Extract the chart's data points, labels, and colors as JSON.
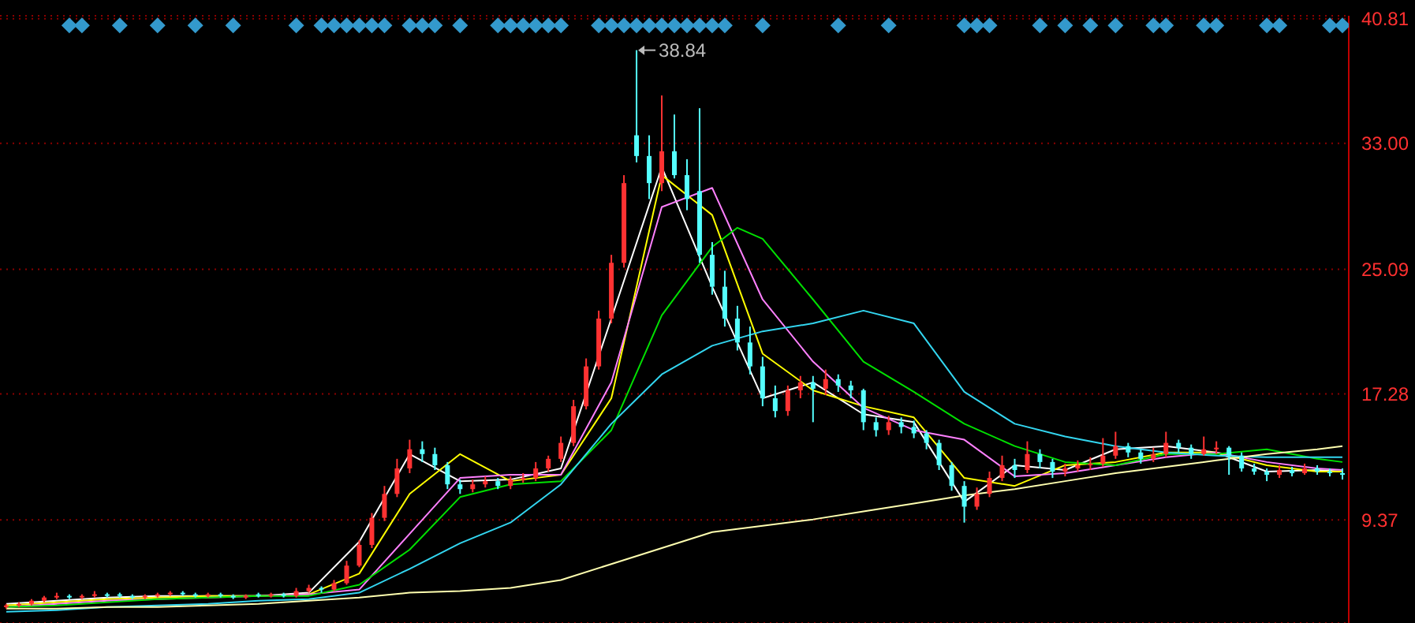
{
  "chart_data": {
    "type": "candlestick",
    "categories": [
      null,
      null,
      null,
      null,
      null,
      null,
      null,
      null,
      null,
      null,
      null,
      null,
      null,
      null,
      null,
      null,
      null,
      null,
      null,
      null,
      null,
      null,
      null,
      null,
      null,
      null,
      null,
      null,
      null,
      null,
      null,
      null,
      null,
      null,
      null,
      null,
      null,
      null,
      null,
      null,
      null,
      null,
      null,
      null,
      null,
      null,
      null,
      null,
      null,
      null,
      null,
      null,
      null,
      null,
      null,
      null,
      null,
      null,
      null,
      null,
      null,
      null,
      null,
      null,
      null,
      null,
      null,
      null,
      null,
      null,
      null,
      null,
      null,
      null,
      null,
      null,
      null,
      null,
      null,
      null,
      null,
      null,
      null,
      null,
      null,
      null,
      null,
      null,
      null,
      null,
      null,
      null,
      null,
      null,
      null,
      null,
      null,
      null,
      null,
      null,
      null,
      null,
      null,
      null,
      null,
      null,
      null
    ],
    "ohlc": [
      [
        3.9,
        4.1,
        3.8,
        4.0
      ],
      [
        4.0,
        4.2,
        3.9,
        4.1
      ],
      [
        4.1,
        4.4,
        4.0,
        4.3
      ],
      [
        4.3,
        4.6,
        4.2,
        4.5
      ],
      [
        4.5,
        4.8,
        4.4,
        4.6
      ],
      [
        4.6,
        4.7,
        4.4,
        4.5
      ],
      [
        4.5,
        4.7,
        4.4,
        4.6
      ],
      [
        4.6,
        4.9,
        4.5,
        4.7
      ],
      [
        4.7,
        4.8,
        4.5,
        4.6
      ],
      [
        4.7,
        4.8,
        4.5,
        4.6
      ],
      [
        4.6,
        4.7,
        4.4,
        4.5
      ],
      [
        4.5,
        4.7,
        4.4,
        4.6
      ],
      [
        4.6,
        4.8,
        4.5,
        4.7
      ],
      [
        4.7,
        4.9,
        4.6,
        4.8
      ],
      [
        4.8,
        4.9,
        4.6,
        4.7
      ],
      [
        4.7,
        4.8,
        4.5,
        4.6
      ],
      [
        4.6,
        4.8,
        4.5,
        4.7
      ],
      [
        4.7,
        4.8,
        4.5,
        4.6
      ],
      [
        4.6,
        4.7,
        4.4,
        4.5
      ],
      [
        4.5,
        4.7,
        4.4,
        4.6
      ],
      [
        4.7,
        4.8,
        4.5,
        4.6
      ],
      [
        4.6,
        4.8,
        4.5,
        4.7
      ],
      [
        4.7,
        4.8,
        4.5,
        4.6
      ],
      [
        4.6,
        5.1,
        4.5,
        4.9
      ],
      [
        4.9,
        5.3,
        4.8,
        5.1
      ],
      [
        5.1,
        5.2,
        4.8,
        5.0
      ],
      [
        5.0,
        5.6,
        4.9,
        5.4
      ],
      [
        5.4,
        6.8,
        5.3,
        6.5
      ],
      [
        6.5,
        8.1,
        6.4,
        7.8
      ],
      [
        7.8,
        9.8,
        7.6,
        9.5
      ],
      [
        9.5,
        11.5,
        9.3,
        11.0
      ],
      [
        11.0,
        13.2,
        10.8,
        12.6
      ],
      [
        12.6,
        14.4,
        12.3,
        13.8
      ],
      [
        13.8,
        14.3,
        13.0,
        13.5
      ],
      [
        13.5,
        13.9,
        12.5,
        12.8
      ],
      [
        12.8,
        13.0,
        11.3,
        11.6
      ],
      [
        11.6,
        11.9,
        11.0,
        11.3
      ],
      [
        11.3,
        11.9,
        11.1,
        11.6
      ],
      [
        11.6,
        12.1,
        11.4,
        11.8
      ],
      [
        11.8,
        12.0,
        11.3,
        11.5
      ],
      [
        11.5,
        12.1,
        11.3,
        11.9
      ],
      [
        11.9,
        12.3,
        11.7,
        12.0
      ],
      [
        12.0,
        13.0,
        11.8,
        12.6
      ],
      [
        12.6,
        13.4,
        12.4,
        13.2
      ],
      [
        13.2,
        14.6,
        13.0,
        14.2
      ],
      [
        14.2,
        16.9,
        14.0,
        16.5
      ],
      [
        16.5,
        19.5,
        16.3,
        19.0
      ],
      [
        19.0,
        22.5,
        18.8,
        22.0
      ],
      [
        22.0,
        26.0,
        21.7,
        25.5
      ],
      [
        25.5,
        31.0,
        25.2,
        30.5
      ],
      [
        33.5,
        38.84,
        31.8,
        32.2
      ],
      [
        32.2,
        33.5,
        29.5,
        30.5
      ],
      [
        30.5,
        36.0,
        30.0,
        32.5
      ],
      [
        32.5,
        34.8,
        30.8,
        31.0
      ],
      [
        31.0,
        32.0,
        28.8,
        29.5
      ],
      [
        30.0,
        35.2,
        25.5,
        26.0
      ],
      [
        26.0,
        26.8,
        23.5,
        24.0
      ],
      [
        24.0,
        25.0,
        21.5,
        22.0
      ],
      [
        22.0,
        22.8,
        20.0,
        20.5
      ],
      [
        20.5,
        21.5,
        18.5,
        19.0
      ],
      [
        19.0,
        19.6,
        16.5,
        17.0
      ],
      [
        17.0,
        17.8,
        15.8,
        16.2
      ],
      [
        16.2,
        17.8,
        15.9,
        17.5
      ],
      [
        17.5,
        18.4,
        17.0,
        18.0
      ],
      [
        18.0,
        18.4,
        15.5,
        17.6
      ],
      [
        17.6,
        18.8,
        17.2,
        18.2
      ],
      [
        18.2,
        18.5,
        17.4,
        17.8
      ],
      [
        17.8,
        18.1,
        17.0,
        17.5
      ],
      [
        17.5,
        17.6,
        15.0,
        15.5
      ],
      [
        15.5,
        15.8,
        14.6,
        15.0
      ],
      [
        15.0,
        15.9,
        14.7,
        15.5
      ],
      [
        15.5,
        15.8,
        14.8,
        15.2
      ],
      [
        15.2,
        15.6,
        14.5,
        14.8
      ],
      [
        14.8,
        15.0,
        13.8,
        14.2
      ],
      [
        14.2,
        14.4,
        12.5,
        12.8
      ],
      [
        12.8,
        13.0,
        11.2,
        11.5
      ],
      [
        11.5,
        11.8,
        9.2,
        10.2
      ],
      [
        10.2,
        11.4,
        10.0,
        11.0
      ],
      [
        11.0,
        12.4,
        10.8,
        12.0
      ],
      [
        12.0,
        13.4,
        11.8,
        12.8
      ],
      [
        12.8,
        13.2,
        12.0,
        12.5
      ],
      [
        12.5,
        14.3,
        12.3,
        13.5
      ],
      [
        13.5,
        13.8,
        12.6,
        13.0
      ],
      [
        13.0,
        13.2,
        12.0,
        12.4
      ],
      [
        12.4,
        12.9,
        12.1,
        12.6
      ],
      [
        12.6,
        13.1,
        12.4,
        12.8
      ],
      [
        12.8,
        13.3,
        12.5,
        12.9
      ],
      [
        12.9,
        14.5,
        12.7,
        13.4
      ],
      [
        13.4,
        14.9,
        13.2,
        14.0
      ],
      [
        14.0,
        14.2,
        13.3,
        13.6
      ],
      [
        13.6,
        13.8,
        12.9,
        13.2
      ],
      [
        13.2,
        13.9,
        13.0,
        13.5
      ],
      [
        13.5,
        14.9,
        13.3,
        14.2
      ],
      [
        14.2,
        14.4,
        13.6,
        13.9
      ],
      [
        13.9,
        14.1,
        13.2,
        13.5
      ],
      [
        13.5,
        14.6,
        13.4,
        13.8
      ],
      [
        13.8,
        14.3,
        13.5,
        13.9
      ],
      [
        13.9,
        14.0,
        12.2,
        13.4
      ],
      [
        13.4,
        13.6,
        12.4,
        12.6
      ],
      [
        12.6,
        12.9,
        12.2,
        12.4
      ],
      [
        12.4,
        12.6,
        11.8,
        12.2
      ],
      [
        12.2,
        12.8,
        12.0,
        12.5
      ],
      [
        12.5,
        12.7,
        12.1,
        12.3
      ],
      [
        12.3,
        12.9,
        12.2,
        12.6
      ],
      [
        12.6,
        12.8,
        12.2,
        12.4
      ],
      [
        12.4,
        12.6,
        12.1,
        12.3
      ],
      [
        12.3,
        12.6,
        11.9,
        12.2
      ]
    ],
    "series": [
      {
        "type": "line",
        "color": "#ffffff",
        "values": [
          4.1,
          null,
          null,
          null,
          4.3,
          null,
          null,
          null,
          4.5,
          null,
          null,
          null,
          4.6,
          null,
          null,
          null,
          4.6,
          null,
          null,
          null,
          4.6,
          null,
          null,
          null,
          4.8,
          null,
          null,
          null,
          8.0,
          null,
          null,
          null,
          13.5,
          null,
          null,
          null,
          11.8,
          null,
          null,
          null,
          11.9,
          null,
          null,
          null,
          12.6,
          null,
          null,
          null,
          22.0,
          null,
          null,
          null,
          31.5,
          null,
          null,
          null,
          24.0,
          null,
          null,
          null,
          17.0,
          null,
          null,
          null,
          18.0,
          null,
          null,
          null,
          16.0,
          null,
          null,
          null,
          15.5,
          null,
          null,
          null,
          10.5,
          null,
          null,
          null,
          12.8,
          null,
          null,
          null,
          12.5,
          null,
          null,
          null,
          13.8,
          null,
          null,
          null,
          14.0,
          null,
          null,
          null,
          13.6,
          null,
          null,
          null,
          12.4,
          null,
          null,
          null,
          12.5,
          null,
          12.4
        ]
      },
      {
        "type": "line",
        "color": "#ffff00",
        "values": [
          4.0,
          null,
          null,
          null,
          4.2,
          null,
          null,
          null,
          4.4,
          null,
          null,
          null,
          4.5,
          null,
          null,
          null,
          4.6,
          null,
          null,
          null,
          4.6,
          null,
          null,
          null,
          4.7,
          null,
          null,
          null,
          6.0,
          null,
          null,
          null,
          11.0,
          null,
          null,
          null,
          13.5,
          null,
          null,
          null,
          11.8,
          null,
          null,
          null,
          12.2,
          null,
          null,
          null,
          17.0,
          null,
          null,
          null,
          31.0,
          null,
          null,
          null,
          28.5,
          null,
          null,
          null,
          19.8,
          null,
          null,
          null,
          17.5,
          null,
          null,
          null,
          16.5,
          null,
          null,
          null,
          15.8,
          null,
          null,
          null,
          12.0,
          null,
          null,
          null,
          11.5,
          null,
          null,
          null,
          12.8,
          null,
          null,
          null,
          13.0,
          null,
          null,
          null,
          13.6,
          null,
          null,
          null,
          13.6,
          null,
          null,
          null,
          12.8,
          null,
          null,
          null,
          12.4,
          null,
          12.4
        ]
      },
      {
        "type": "line",
        "color": "#ff80ff",
        "values": [
          3.9,
          null,
          null,
          null,
          4.1,
          null,
          null,
          null,
          4.3,
          null,
          null,
          null,
          4.4,
          null,
          null,
          null,
          4.5,
          null,
          null,
          null,
          4.6,
          null,
          null,
          null,
          4.7,
          null,
          null,
          null,
          5.0,
          null,
          null,
          null,
          8.5,
          null,
          null,
          null,
          12.0,
          null,
          null,
          null,
          12.2,
          null,
          null,
          null,
          12.2,
          null,
          null,
          null,
          18.0,
          null,
          null,
          null,
          29.0,
          null,
          null,
          null,
          30.2,
          null,
          null,
          null,
          23.2,
          null,
          null,
          null,
          19.3,
          null,
          null,
          null,
          16.4,
          null,
          null,
          null,
          15.0,
          null,
          null,
          null,
          14.4,
          null,
          null,
          null,
          12.1,
          null,
          null,
          null,
          12.3,
          null,
          null,
          null,
          12.8,
          null,
          null,
          null,
          13.3,
          null,
          null,
          null,
          13.6,
          null,
          null,
          null,
          13.0,
          null,
          null,
          null,
          12.6,
          null,
          12.5
        ]
      },
      {
        "type": "line",
        "color": "#00e000",
        "values": [
          3.9,
          null,
          null,
          null,
          4.0,
          null,
          null,
          null,
          4.2,
          null,
          null,
          null,
          4.4,
          null,
          null,
          null,
          4.5,
          null,
          null,
          null,
          4.6,
          null,
          null,
          null,
          4.6,
          null,
          null,
          null,
          5.3,
          null,
          null,
          null,
          7.5,
          null,
          null,
          null,
          10.8,
          null,
          null,
          null,
          11.6,
          null,
          null,
          null,
          11.8,
          null,
          null,
          null,
          15.0,
          null,
          null,
          null,
          22.2,
          null,
          null,
          null,
          26.5,
          null,
          27.7,
          null,
          27.0,
          null,
          null,
          null,
          23.2,
          null,
          null,
          null,
          19.3,
          null,
          null,
          null,
          17.4,
          null,
          null,
          null,
          15.4,
          null,
          null,
          null,
          14.0,
          null,
          null,
          null,
          13.0,
          null,
          null,
          null,
          12.8,
          null,
          null,
          null,
          13.5,
          null,
          null,
          null,
          13.5,
          null,
          null,
          null,
          13.8,
          null,
          null,
          null,
          13.2,
          null,
          13.0
        ]
      },
      {
        "type": "line",
        "color": "#33d6f0",
        "values": [
          3.6,
          null,
          null,
          null,
          3.7,
          null,
          null,
          null,
          3.9,
          null,
          null,
          null,
          4.0,
          null,
          null,
          null,
          4.1,
          null,
          null,
          null,
          4.3,
          null,
          null,
          null,
          4.4,
          null,
          null,
          null,
          4.8,
          null,
          null,
          null,
          6.3,
          null,
          null,
          null,
          7.9,
          null,
          null,
          null,
          9.2,
          null,
          null,
          null,
          11.6,
          null,
          null,
          null,
          15.4,
          null,
          null,
          null,
          18.5,
          null,
          null,
          null,
          20.3,
          null,
          null,
          null,
          21.2,
          null,
          null,
          null,
          21.7,
          null,
          null,
          null,
          22.5,
          null,
          null,
          null,
          21.7,
          null,
          null,
          null,
          17.4,
          null,
          null,
          null,
          15.4,
          null,
          null,
          null,
          14.6,
          null,
          null,
          null,
          14.0,
          null,
          null,
          null,
          13.6,
          null,
          null,
          null,
          13.4,
          null,
          null,
          null,
          13.3,
          null,
          null,
          null,
          13.3,
          null,
          13.3
        ]
      },
      {
        "type": "line",
        "color": "#ffffb0",
        "values": [
          3.8,
          null,
          null,
          null,
          3.8,
          null,
          null,
          null,
          3.9,
          null,
          null,
          null,
          3.9,
          null,
          null,
          null,
          4.0,
          null,
          null,
          null,
          4.1,
          null,
          null,
          null,
          4.3,
          null,
          null,
          null,
          4.5,
          null,
          null,
          null,
          4.8,
          null,
          null,
          null,
          4.9,
          null,
          null,
          null,
          5.1,
          null,
          null,
          null,
          5.6,
          null,
          null,
          null,
          6.6,
          null,
          null,
          null,
          7.6,
          null,
          null,
          null,
          8.6,
          null,
          null,
          null,
          9.0,
          null,
          null,
          null,
          9.4,
          null,
          null,
          null,
          9.9,
          null,
          null,
          null,
          10.4,
          null,
          null,
          null,
          10.9,
          null,
          null,
          null,
          11.3,
          null,
          null,
          null,
          11.8,
          null,
          null,
          null,
          12.3,
          null,
          null,
          null,
          12.7,
          null,
          null,
          null,
          13.1,
          null,
          null,
          null,
          13.5,
          null,
          null,
          null,
          13.8,
          null,
          14.0
        ]
      },
      {
        "type": "scatter",
        "color": "#3399cc",
        "marker": "diamond",
        "values": [
          null,
          null,
          null,
          null,
          null,
          40.4,
          40.4,
          null,
          null,
          40.4,
          null,
          null,
          40.4,
          null,
          null,
          40.4,
          null,
          null,
          40.4,
          null,
          null,
          null,
          null,
          40.4,
          null,
          40.4,
          40.4,
          40.4,
          40.4,
          40.4,
          40.4,
          null,
          40.4,
          40.4,
          40.4,
          null,
          40.4,
          null,
          null,
          40.4,
          40.4,
          40.4,
          40.4,
          40.4,
          40.4,
          null,
          null,
          40.4,
          40.4,
          40.4,
          40.4,
          40.4,
          40.4,
          40.4,
          40.4,
          40.4,
          40.4,
          40.4,
          null,
          null,
          40.4,
          null,
          null,
          null,
          null,
          null,
          40.4,
          null,
          null,
          null,
          40.4,
          null,
          null,
          null,
          null,
          null,
          40.4,
          40.4,
          40.4,
          null,
          null,
          null,
          40.4,
          null,
          40.4,
          null,
          40.4,
          null,
          40.4,
          null,
          null,
          40.4,
          40.4,
          null,
          null,
          40.4,
          40.4,
          null,
          null,
          null,
          40.4,
          40.4,
          null,
          null,
          null,
          40.4,
          40.4
        ]
      }
    ],
    "ylim": [
      2.9,
      41.0
    ],
    "yticks": [
      9.37,
      17.28,
      25.09,
      {
        "value": 33.0,
        "label": "33.00"
      },
      40.81
    ],
    "tick_labels": "y",
    "grid": "y",
    "annotations": [
      "38.84"
    ]
  }
}
